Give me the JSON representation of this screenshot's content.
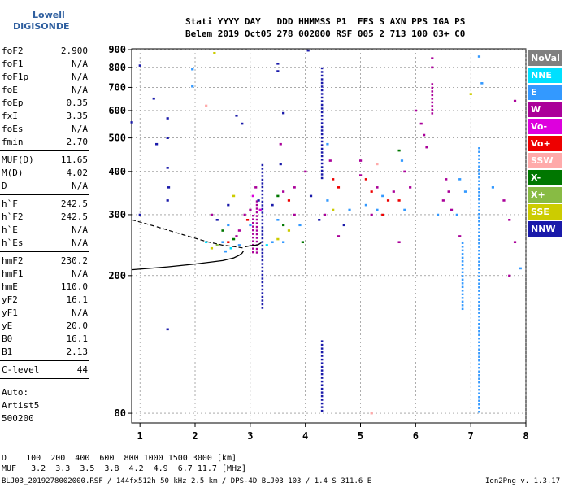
{
  "logo": {
    "top": "Lowell",
    "bottom": "DIGISONDE"
  },
  "header": {
    "line1": "Stati YYYY DAY   DDD HHMMSS P1  FFS S AXN PPS IGA PS",
    "line2": "Belem 2019 Oct05 278 002000 RSF 005 2 713 100 03+ C0"
  },
  "params": {
    "group1": [
      {
        "name": "foF2",
        "value": "2.900"
      },
      {
        "name": "foF1",
        "value": "N/A"
      },
      {
        "name": "foF1p",
        "value": "N/A"
      },
      {
        "name": "foE",
        "value": "N/A"
      },
      {
        "name": "foEp",
        "value": "0.35"
      },
      {
        "name": "fxI",
        "value": "3.35"
      },
      {
        "name": "foEs",
        "value": "N/A"
      },
      {
        "name": "fmin",
        "value": "2.70"
      }
    ],
    "group2": [
      {
        "name": "MUF(D)",
        "value": "11.65"
      },
      {
        "name": "M(D)",
        "value": "4.02"
      },
      {
        "name": "D",
        "value": "N/A"
      }
    ],
    "group3": [
      {
        "name": "h`F",
        "value": "242.5"
      },
      {
        "name": "h`F2",
        "value": "242.5"
      },
      {
        "name": "h`E",
        "value": "N/A"
      },
      {
        "name": "h`Es",
        "value": "N/A"
      }
    ],
    "group4": [
      {
        "name": "hmF2",
        "value": "230.2"
      },
      {
        "name": "hmF1",
        "value": "N/A"
      },
      {
        "name": "hmE",
        "value": "110.0"
      },
      {
        "name": "yF2",
        "value": "16.1"
      },
      {
        "name": "yF1",
        "value": "N/A"
      },
      {
        "name": "yE",
        "value": "20.0"
      },
      {
        "name": "B0",
        "value": "16.1"
      },
      {
        "name": "B1",
        "value": "2.13"
      }
    ],
    "group5": [
      {
        "name": "C-level",
        "value": "44"
      }
    ],
    "auto": [
      "Auto:",
      "Artist5",
      "500200"
    ]
  },
  "legend": [
    {
      "label": "NoVal",
      "color": "#808080"
    },
    {
      "label": "NNE",
      "color": "#00e0ff"
    },
    {
      "label": "E",
      "color": "#3399ff"
    },
    {
      "label": "W",
      "color": "#aa0099"
    },
    {
      "label": "Vo-",
      "color": "#dd00dd"
    },
    {
      "label": "Vo+",
      "color": "#ee0000"
    },
    {
      "label": "SSW",
      "color": "#ffaaaa"
    },
    {
      "label": "X-",
      "color": "#007700"
    },
    {
      "label": "X+",
      "color": "#88bb44"
    },
    {
      "label": "SSE",
      "color": "#cccc00"
    },
    {
      "label": "NNW",
      "color": "#1a1aaa"
    }
  ],
  "footer": {
    "d_row": "D    100  200  400  600  800 1000 1500 3000 [km]",
    "muf_row": "MUF   3.2  3.3  3.5  3.8  4.2  4.9  6.7 11.7 [MHz]",
    "file_info": "BLJ03_2019278002000.RSF / 144fx512h 50 kHz 2.5 km / DPS-4D BLJ03 103 / 1.4 S 311.6 E",
    "version": "Ion2Png v. 1.3.17"
  },
  "chart_data": {
    "type": "scatter",
    "title": "",
    "xlabel": "",
    "ylabel": "",
    "xlim": [
      0.85,
      8.0
    ],
    "ylim": [
      75,
      905
    ],
    "x_ticks": [
      1,
      2,
      3,
      4,
      5,
      6,
      7,
      8
    ],
    "y_ticks": [
      80,
      200,
      300,
      400,
      500,
      600,
      700,
      800,
      900
    ],
    "y_scale": "log",
    "grid": "dashed",
    "legend_position": "right",
    "profile_solid": [
      [
        0.85,
        208
      ],
      [
        1.5,
        212
      ],
      [
        2.0,
        216
      ],
      [
        2.5,
        221
      ],
      [
        2.7,
        225
      ],
      [
        2.8,
        229
      ],
      [
        2.85,
        232
      ],
      [
        2.88,
        236
      ]
    ],
    "profile_dashed": [
      [
        0.85,
        290
      ],
      [
        1.3,
        277
      ],
      [
        1.8,
        262
      ],
      [
        2.2,
        251
      ],
      [
        2.5,
        245
      ],
      [
        2.75,
        242
      ],
      [
        2.9,
        240
      ]
    ],
    "trace_o": [
      [
        2.9,
        242
      ],
      [
        2.95,
        243
      ],
      [
        3.0,
        244
      ],
      [
        3.05,
        244.5
      ],
      [
        3.1,
        245
      ],
      [
        3.15,
        246
      ],
      [
        3.2,
        249
      ]
    ],
    "vertical_streaks": [
      {
        "x": 3.22,
        "y0": 160,
        "y1": 420,
        "color": "#1a1aaa"
      },
      {
        "x": 3.12,
        "y0": 230,
        "y1": 330,
        "color": "#aa0099"
      },
      {
        "x": 3.05,
        "y0": 230,
        "y1": 300,
        "color": "#aa0099"
      },
      {
        "x": 4.3,
        "y0": 80,
        "y1": 130,
        "color": "#1a1aaa"
      },
      {
        "x": 4.3,
        "y0": 380,
        "y1": 800,
        "color": "#1a1aaa"
      },
      {
        "x": 6.3,
        "y0": 580,
        "y1": 720,
        "color": "#aa0099"
      },
      {
        "x": 6.85,
        "y0": 160,
        "y1": 250,
        "color": "#3399ff"
      },
      {
        "x": 7.15,
        "y0": 80,
        "y1": 470,
        "color": "#3399ff"
      }
    ],
    "points": [
      [
        1.0,
        810,
        "#1a1aaa"
      ],
      [
        0.85,
        555,
        "#1a1aaa"
      ],
      [
        1.25,
        650,
        "#1a1aaa"
      ],
      [
        1.3,
        480,
        "#1a1aaa"
      ],
      [
        1.5,
        570,
        "#1a1aaa"
      ],
      [
        1.5,
        500,
        "#1a1aaa"
      ],
      [
        1.5,
        410,
        "#1a1aaa"
      ],
      [
        1.52,
        360,
        "#1a1aaa"
      ],
      [
        1.5,
        330,
        "#1a1aaa"
      ],
      [
        1.5,
        140,
        "#1a1aaa"
      ],
      [
        1.0,
        300,
        "#1a1aaa"
      ],
      [
        1.95,
        790,
        "#3399ff"
      ],
      [
        1.95,
        705,
        "#3399ff"
      ],
      [
        2.2,
        620,
        "#ffaaaa"
      ],
      [
        2.35,
        880,
        "#cccc00"
      ],
      [
        2.75,
        580,
        "#1a1aaa"
      ],
      [
        2.85,
        550,
        "#1a1aaa"
      ],
      [
        2.6,
        320,
        "#1a1aaa"
      ],
      [
        2.7,
        340,
        "#cccc00"
      ],
      [
        2.3,
        300,
        "#aa0099"
      ],
      [
        2.4,
        290,
        "#1a1aaa"
      ],
      [
        2.5,
        270,
        "#007700"
      ],
      [
        2.6,
        280,
        "#3399ff"
      ],
      [
        2.2,
        250,
        "#00e0ff"
      ],
      [
        2.3,
        240,
        "#cccc00"
      ],
      [
        2.4,
        245,
        "#88bb44"
      ],
      [
        2.5,
        250,
        "#3399ff"
      ],
      [
        2.6,
        250,
        "#ee0000"
      ],
      [
        2.7,
        255,
        "#007700"
      ],
      [
        2.75,
        260,
        "#aa0099"
      ],
      [
        2.8,
        270,
        "#aa0099"
      ],
      [
        2.9,
        300,
        "#aa0099"
      ],
      [
        2.95,
        290,
        "#ee0000"
      ],
      [
        3.0,
        280,
        "#3399ff"
      ],
      [
        3.0,
        310,
        "#aa0099"
      ],
      [
        3.05,
        340,
        "#dd00dd"
      ],
      [
        3.1,
        360,
        "#aa0099"
      ],
      [
        3.15,
        330,
        "#1a1aaa"
      ],
      [
        3.18,
        310,
        "#dd00dd"
      ],
      [
        2.55,
        235,
        "#3399ff"
      ],
      [
        2.65,
        240,
        "#00e0ff"
      ],
      [
        2.8,
        245,
        "#3399ff"
      ],
      [
        3.3,
        245,
        "#00e0ff"
      ],
      [
        3.4,
        250,
        "#3399ff"
      ],
      [
        3.5,
        255,
        "#cccc00"
      ],
      [
        3.6,
        250,
        "#3399ff"
      ],
      [
        3.5,
        820,
        "#1a1aaa"
      ],
      [
        3.5,
        780,
        "#1a1aaa"
      ],
      [
        3.6,
        590,
        "#1a1aaa"
      ],
      [
        3.55,
        480,
        "#aa0099"
      ],
      [
        3.55,
        420,
        "#1a1aaa"
      ],
      [
        3.5,
        340,
        "#007700"
      ],
      [
        3.6,
        350,
        "#aa0099"
      ],
      [
        3.7,
        330,
        "#ee0000"
      ],
      [
        3.8,
        360,
        "#aa0099"
      ],
      [
        3.4,
        320,
        "#1a1aaa"
      ],
      [
        3.5,
        290,
        "#3399ff"
      ],
      [
        3.6,
        280,
        "#007700"
      ],
      [
        3.7,
        270,
        "#cccc00"
      ],
      [
        3.8,
        300,
        "#aa0099"
      ],
      [
        3.9,
        280,
        "#3399ff"
      ],
      [
        4.05,
        895,
        "#1a1aaa"
      ],
      [
        4.0,
        400,
        "#aa0099"
      ],
      [
        4.1,
        340,
        "#1a1aaa"
      ],
      [
        3.95,
        250,
        "#007700"
      ],
      [
        4.4,
        480,
        "#3399ff"
      ],
      [
        4.45,
        430,
        "#aa0099"
      ],
      [
        4.5,
        380,
        "#ee0000"
      ],
      [
        4.6,
        360,
        "#ee0000"
      ],
      [
        4.4,
        330,
        "#3399ff"
      ],
      [
        4.5,
        310,
        "#cccc00"
      ],
      [
        4.35,
        300,
        "#aa0099"
      ],
      [
        4.25,
        290,
        "#1a1aaa"
      ],
      [
        4.6,
        260,
        "#aa0099"
      ],
      [
        4.7,
        280,
        "#1a1aaa"
      ],
      [
        4.8,
        310,
        "#3399ff"
      ],
      [
        5.0,
        390,
        "#aa0099"
      ],
      [
        5.1,
        380,
        "#ee0000"
      ],
      [
        5.2,
        350,
        "#ee0000"
      ],
      [
        5.3,
        360,
        "#aa0099"
      ],
      [
        5.4,
        340,
        "#3399ff"
      ],
      [
        5.5,
        330,
        "#ee0000"
      ],
      [
        5.6,
        350,
        "#aa0099"
      ],
      [
        5.1,
        320,
        "#3399ff"
      ],
      [
        5.2,
        300,
        "#aa0099"
      ],
      [
        5.3,
        310,
        "#3399ff"
      ],
      [
        5.4,
        300,
        "#ee0000"
      ],
      [
        5.0,
        430,
        "#aa0099"
      ],
      [
        5.3,
        420,
        "#ffaaaa"
      ],
      [
        5.2,
        80,
        "#ffaaaa"
      ],
      [
        5.7,
        460,
        "#007700"
      ],
      [
        5.75,
        430,
        "#3399ff"
      ],
      [
        5.8,
        400,
        "#aa0099"
      ],
      [
        5.9,
        360,
        "#aa0099"
      ],
      [
        5.7,
        330,
        "#ee0000"
      ],
      [
        5.8,
        310,
        "#3399ff"
      ],
      [
        5.7,
        250,
        "#aa0099"
      ],
      [
        6.0,
        600,
        "#aa0099"
      ],
      [
        6.1,
        550,
        "#aa0099"
      ],
      [
        6.15,
        510,
        "#aa0099"
      ],
      [
        6.2,
        470,
        "#aa0099"
      ],
      [
        6.3,
        850,
        "#aa0099"
      ],
      [
        6.3,
        800,
        "#aa0099"
      ],
      [
        6.55,
        380,
        "#aa0099"
      ],
      [
        6.6,
        350,
        "#aa0099"
      ],
      [
        6.5,
        330,
        "#aa0099"
      ],
      [
        6.65,
        310,
        "#aa0099"
      ],
      [
        6.4,
        300,
        "#3399ff"
      ],
      [
        6.8,
        380,
        "#3399ff"
      ],
      [
        6.9,
        350,
        "#3399ff"
      ],
      [
        6.75,
        300,
        "#3399ff"
      ],
      [
        6.8,
        260,
        "#aa0099"
      ],
      [
        7.0,
        670,
        "#cccc00"
      ],
      [
        7.15,
        860,
        "#3399ff"
      ],
      [
        7.2,
        720,
        "#3399ff"
      ],
      [
        7.4,
        360,
        "#3399ff"
      ],
      [
        7.6,
        330,
        "#aa0099"
      ],
      [
        7.7,
        290,
        "#aa0099"
      ],
      [
        7.8,
        250,
        "#aa0099"
      ],
      [
        7.8,
        640,
        "#aa0099"
      ],
      [
        7.9,
        210,
        "#3399ff"
      ],
      [
        7.7,
        200,
        "#aa0099"
      ]
    ]
  }
}
